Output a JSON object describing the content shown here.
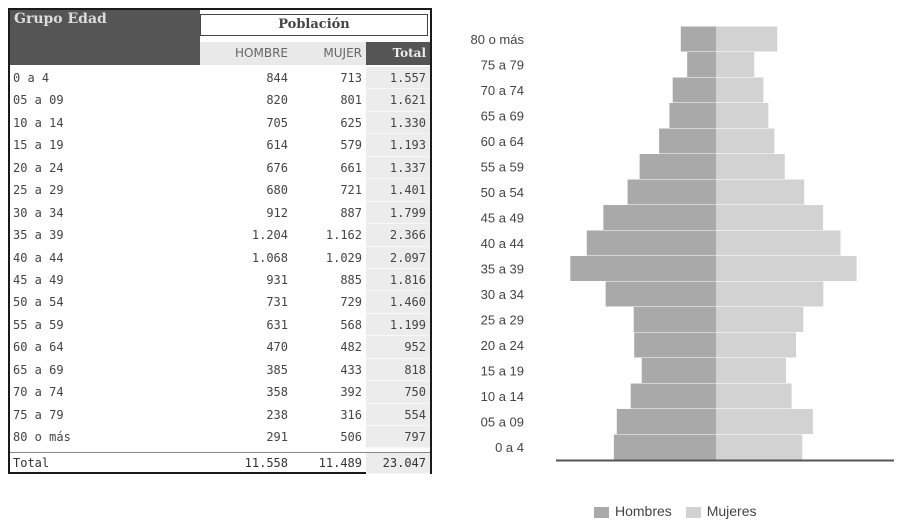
{
  "table": {
    "header_group": "Grupo Edad",
    "header_poblacion": "Población",
    "col_hombre": "HOMBRE",
    "col_mujer": "MUJER",
    "col_total": "Total",
    "rows": [
      {
        "edad": "0 a 4",
        "hombre": "844",
        "mujer": "713",
        "total": "1.557"
      },
      {
        "edad": "05 a 09",
        "hombre": "820",
        "mujer": "801",
        "total": "1.621"
      },
      {
        "edad": "10 a 14",
        "hombre": "705",
        "mujer": "625",
        "total": "1.330"
      },
      {
        "edad": "15 a 19",
        "hombre": "614",
        "mujer": "579",
        "total": "1.193"
      },
      {
        "edad": "20 a 24",
        "hombre": "676",
        "mujer": "661",
        "total": "1.337"
      },
      {
        "edad": "25 a 29",
        "hombre": "680",
        "mujer": "721",
        "total": "1.401"
      },
      {
        "edad": "30 a 34",
        "hombre": "912",
        "mujer": "887",
        "total": "1.799"
      },
      {
        "edad": "35 a 39",
        "hombre": "1.204",
        "mujer": "1.162",
        "total": "2.366"
      },
      {
        "edad": "40 a 44",
        "hombre": "1.068",
        "mujer": "1.029",
        "total": "2.097"
      },
      {
        "edad": "45 a 49",
        "hombre": "931",
        "mujer": "885",
        "total": "1.816"
      },
      {
        "edad": "50 a 54",
        "hombre": "731",
        "mujer": "729",
        "total": "1.460"
      },
      {
        "edad": "55 a 59",
        "hombre": "631",
        "mujer": "568",
        "total": "1.199"
      },
      {
        "edad": "60 a 64",
        "hombre": "470",
        "mujer": "482",
        "total": "952"
      },
      {
        "edad": "65 a 69",
        "hombre": "385",
        "mujer": "433",
        "total": "818"
      },
      {
        "edad": "70 a 74",
        "hombre": "358",
        "mujer": "392",
        "total": "750"
      },
      {
        "edad": "75 a 79",
        "hombre": "238",
        "mujer": "316",
        "total": "554"
      },
      {
        "edad": "80 o más",
        "hombre": "291",
        "mujer": "506",
        "total": "797"
      }
    ],
    "total_row": {
      "label": "Total",
      "hombre": "11.558",
      "mujer": "11.489",
      "total": "23.047"
    }
  },
  "chart_data": {
    "type": "bar",
    "orientation": "horizontal-pyramid",
    "categories": [
      "0 a 4",
      "05 a 09",
      "10 a 14",
      "15 a 19",
      "20 a 24",
      "25 a 29",
      "30 a 34",
      "35 a 39",
      "40 a 44",
      "45 a 49",
      "50 a 54",
      "55 a 59",
      "60 a 64",
      "65 a 69",
      "70 a 74",
      "75 a 79",
      "80 o más"
    ],
    "series": [
      {
        "name": "Hombres",
        "color": "#a9a9a9",
        "values": [
          844,
          820,
          705,
          614,
          676,
          680,
          912,
          1204,
          1068,
          931,
          731,
          631,
          470,
          385,
          358,
          238,
          291
        ]
      },
      {
        "name": "Mujeres",
        "color": "#d2d2d2",
        "values": [
          713,
          801,
          625,
          579,
          661,
          721,
          887,
          1162,
          1029,
          885,
          729,
          568,
          482,
          433,
          392,
          316,
          506
        ]
      }
    ],
    "legend_position": "bottom",
    "grid": false
  }
}
